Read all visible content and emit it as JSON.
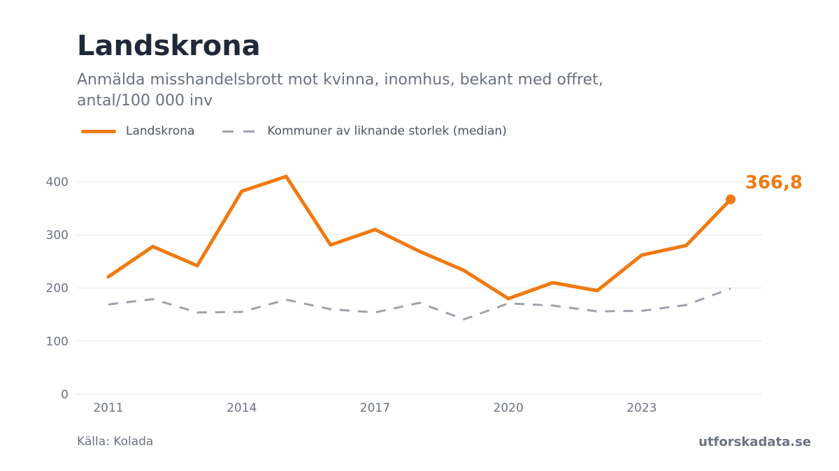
{
  "header": {
    "title": "Landskrona",
    "subtitle": "Anmälda misshandelsbrott mot kvinna, inomhus, bekant med offret, antal/100 000 inv"
  },
  "footer": {
    "source": "Källa: Kolada",
    "brand": "utforskadata.se"
  },
  "colors": {
    "primary": "#f07a10",
    "median": "#9ca3af",
    "grid": "#e5e7eb",
    "axis_text": "#6b7280"
  },
  "chart_data": {
    "type": "line",
    "x": [
      2011,
      2012,
      2013,
      2014,
      2015,
      2016,
      2017,
      2018,
      2019,
      2020,
      2021,
      2022,
      2023,
      2024,
      2025
    ],
    "x_tick_labels": [
      "2011",
      "2014",
      "2017",
      "2020",
      "2023"
    ],
    "y_ticks": [
      0,
      100,
      200,
      300,
      400
    ],
    "ylim": [
      0,
      440
    ],
    "grid": true,
    "legend_position": "top-left",
    "series": [
      {
        "name": "Landskrona",
        "style": "solid",
        "values": [
          221,
          278,
          242,
          382,
          410,
          281,
          310,
          269,
          233,
          180,
          210,
          195,
          262,
          280,
          366.8
        ]
      },
      {
        "name": "Kommuner av liknande storlek (median)",
        "style": "dashed",
        "values": [
          169,
          179,
          154,
          155,
          178,
          160,
          154,
          172,
          141,
          171,
          167,
          156,
          157,
          168,
          199
        ]
      }
    ],
    "end_label": "366,8"
  }
}
